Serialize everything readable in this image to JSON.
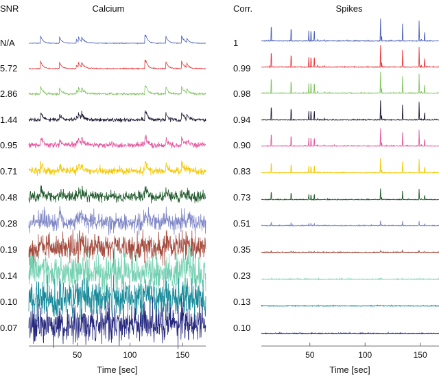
{
  "chart_data": [
    {
      "type": "line",
      "title": "Calcium",
      "row_header": "SNR",
      "xlabel": "Time [sec]",
      "xlim": [
        4,
        172
      ],
      "xticks": [
        50,
        100,
        150
      ],
      "grid": false,
      "series": [
        {
          "name": "N/A",
          "snr": null,
          "color": "#4a5fb8"
        },
        {
          "name": "5.72",
          "snr": 5.72,
          "color": "#ea3438"
        },
        {
          "name": "2.86",
          "snr": 2.86,
          "color": "#7cc35a"
        },
        {
          "name": "1.44",
          "snr": 1.44,
          "color": "#1c1a33"
        },
        {
          "name": "0.95",
          "snr": 0.95,
          "color": "#e4559e"
        },
        {
          "name": "0.71",
          "snr": 0.71,
          "color": "#f3c800"
        },
        {
          "name": "0.48",
          "snr": 0.48,
          "color": "#1f5a2c"
        },
        {
          "name": "0.28",
          "snr": 0.28,
          "color": "#7f87c6"
        },
        {
          "name": "0.19",
          "snr": 0.19,
          "color": "#a44a3c"
        },
        {
          "name": "0.14",
          "snr": 0.14,
          "color": "#72d0b0"
        },
        {
          "name": "0.10",
          "snr": 0.1,
          "color": "#178a9a"
        },
        {
          "name": "0.07",
          "snr": 0.07,
          "color": "#26287e"
        }
      ]
    },
    {
      "type": "line",
      "title": "Spikes",
      "row_header": "Corr.",
      "xlabel": "Time [sec]",
      "xlim": [
        6,
        167
      ],
      "xticks": [
        50,
        100,
        150
      ],
      "grid": false,
      "series": [
        {
          "name": "1",
          "corr": 1.0
        },
        {
          "name": "0.99",
          "corr": 0.99
        },
        {
          "name": "0.98",
          "corr": 0.98
        },
        {
          "name": "0.94",
          "corr": 0.94
        },
        {
          "name": "0.90",
          "corr": 0.9
        },
        {
          "name": "0.83",
          "corr": 0.83
        },
        {
          "name": "0.73",
          "corr": 0.73
        },
        {
          "name": "0.51",
          "corr": 0.51
        },
        {
          "name": "0.35",
          "corr": 0.35
        },
        {
          "name": "0.23",
          "corr": 0.23
        },
        {
          "name": "0.13",
          "corr": 0.13
        },
        {
          "name": "0.10",
          "corr": 0.1
        }
      ]
    }
  ],
  "events": [
    {
      "t": 15,
      "amp": 0.85
    },
    {
      "t": 33,
      "amp": 0.7
    },
    {
      "t": 49,
      "amp": 0.4
    },
    {
      "t": 51,
      "amp": 0.55
    },
    {
      "t": 54,
      "amp": 0.55
    },
    {
      "t": 57,
      "amp": 0.08
    },
    {
      "t": 63,
      "amp": 0.06
    },
    {
      "t": 114,
      "amp": 1.0
    },
    {
      "t": 115,
      "amp": 0.25
    },
    {
      "t": 134,
      "amp": 0.8
    },
    {
      "t": 149,
      "amp": 0.8
    },
    {
      "t": 151,
      "amp": 0.1
    },
    {
      "t": 154,
      "amp": 0.45
    }
  ]
}
